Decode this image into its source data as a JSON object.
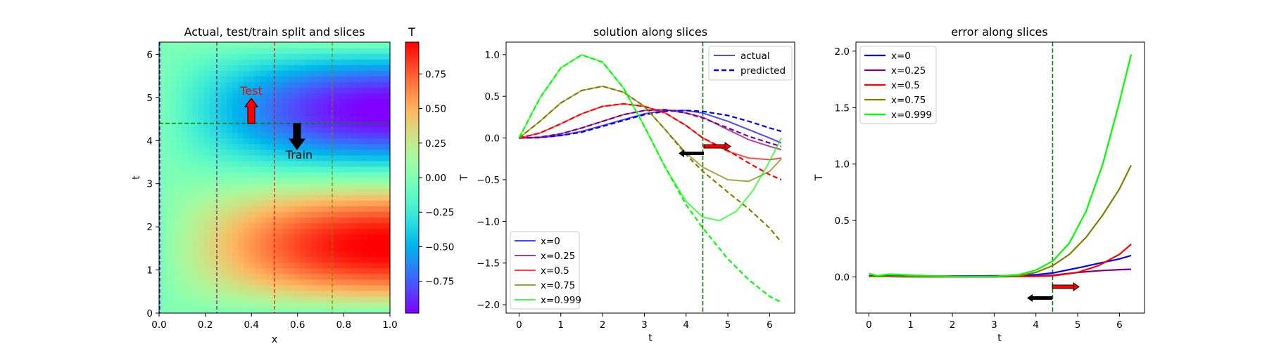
{
  "chart_data": [
    {
      "type": "heatmap",
      "title": "Actual, test/train split and slices",
      "xlabel": "x",
      "ylabel": "t",
      "xlim": [
        0,
        1
      ],
      "ylim": [
        0,
        6.283
      ],
      "xticks": [
        "0.0",
        "0.2",
        "0.4",
        "0.6",
        "0.8",
        "1.0"
      ],
      "yticks": [
        "0",
        "1",
        "2",
        "3",
        "4",
        "5",
        "6"
      ],
      "colorbar": {
        "label": "T",
        "range": [
          -0.98,
          0.98
        ],
        "ticks": [
          "0.75",
          "0.50",
          "0.25",
          "0.00",
          "−0.25",
          "−0.50",
          "−0.75"
        ],
        "colormap": "rainbow"
      },
      "split_t": 4.4,
      "slices_x": [
        0,
        0.25,
        0.5,
        0.75,
        0.999
      ],
      "slice_colors": [
        "#0000ff",
        "#800080",
        "#ff0000",
        "#808000",
        "#00ff00"
      ],
      "annotations": {
        "test_label": "Test",
        "train_label": "Train"
      },
      "colors": {
        "test": "#ff0000",
        "split_line": "#008000"
      }
    },
    {
      "type": "line",
      "title": "solution along slices",
      "xlabel": "t",
      "ylabel": "T",
      "xlim": [
        -0.31,
        6.6
      ],
      "ylim": [
        -2.1,
        1.15
      ],
      "xticks": [
        "0",
        "1",
        "2",
        "3",
        "4",
        "5",
        "6"
      ],
      "yticks": [
        "1.0",
        "0.5",
        "0.0",
        "−0.5",
        "−1.0",
        "−1.5",
        "−2.0"
      ],
      "split_t": 4.4,
      "style_legend": [
        "actual",
        "predicted"
      ],
      "series": [
        {
          "name": "x=0",
          "color": "#0000ff",
          "actual": {
            "t": [
              0,
              0.5,
              1,
              1.5,
              2,
              2.5,
              3,
              3.5,
              4,
              4.4,
              5,
              5.5,
              6,
              6.28
            ],
            "y": [
              0,
              0.005,
              0.03,
              0.08,
              0.15,
              0.22,
              0.29,
              0.33,
              0.33,
              0.3,
              0.2,
              0.1,
              0.0,
              -0.06
            ]
          },
          "predicted": {
            "t": [
              0,
              0.5,
              1,
              1.5,
              2,
              2.5,
              3,
              3.5,
              4,
              4.4,
              5,
              5.5,
              6,
              6.28
            ],
            "y": [
              0,
              0.005,
              0.03,
              0.07,
              0.14,
              0.21,
              0.28,
              0.32,
              0.33,
              0.32,
              0.27,
              0.2,
              0.12,
              0.08
            ]
          }
        },
        {
          "name": "x=0.25",
          "color": "#800080",
          "actual": {
            "t": [
              0,
              0.5,
              1,
              1.5,
              2,
              2.5,
              3,
              3.5,
              4,
              4.4,
              5,
              5.5,
              6,
              6.28
            ],
            "y": [
              0,
              0.01,
              0.05,
              0.12,
              0.2,
              0.28,
              0.33,
              0.34,
              0.3,
              0.25,
              0.1,
              -0.02,
              -0.1,
              -0.14
            ]
          },
          "predicted": {
            "t": [
              0,
              0.5,
              1,
              1.5,
              2,
              2.5,
              3,
              3.5,
              4,
              4.4,
              5,
              5.5,
              6,
              6.28
            ],
            "y": [
              0,
              0.01,
              0.05,
              0.12,
              0.2,
              0.28,
              0.33,
              0.34,
              0.3,
              0.24,
              0.12,
              0.02,
              -0.06,
              -0.1
            ]
          }
        },
        {
          "name": "x=0.5",
          "color": "#ff0000",
          "actual": {
            "t": [
              0,
              0.5,
              1,
              1.5,
              2,
              2.5,
              3,
              3.5,
              4,
              4.4,
              5,
              5.5,
              6,
              6.28
            ],
            "y": [
              0,
              0.06,
              0.17,
              0.29,
              0.38,
              0.41,
              0.38,
              0.3,
              0.15,
              0.0,
              -0.16,
              -0.24,
              -0.26,
              -0.24
            ]
          },
          "predicted": {
            "t": [
              0,
              0.5,
              1,
              1.5,
              2,
              2.5,
              3,
              3.5,
              4,
              4.4,
              5,
              5.5,
              6,
              6.28
            ],
            "y": [
              0,
              0.06,
              0.17,
              0.29,
              0.38,
              0.41,
              0.38,
              0.3,
              0.15,
              0.0,
              -0.15,
              -0.3,
              -0.44,
              -0.5
            ]
          }
        },
        {
          "name": "x=0.75",
          "color": "#808000",
          "actual": {
            "t": [
              0,
              0.5,
              1,
              1.5,
              2,
              2.5,
              3,
              3.5,
              4,
              4.4,
              5,
              5.5,
              6,
              6.28
            ],
            "y": [
              0,
              0.2,
              0.42,
              0.57,
              0.62,
              0.55,
              0.38,
              0.1,
              -0.18,
              -0.35,
              -0.5,
              -0.52,
              -0.4,
              -0.25
            ]
          },
          "predicted": {
            "t": [
              0,
              0.5,
              1,
              1.5,
              2,
              2.5,
              3,
              3.5,
              4,
              4.4,
              5,
              5.5,
              6,
              6.28
            ],
            "y": [
              0,
              0.2,
              0.42,
              0.57,
              0.62,
              0.55,
              0.38,
              0.1,
              -0.2,
              -0.4,
              -0.65,
              -0.85,
              -1.08,
              -1.25
            ]
          }
        },
        {
          "name": "x=0.999",
          "color": "#00ff00",
          "actual": {
            "t": [
              0,
              0.5,
              1,
              1.5,
              2,
              2.5,
              3,
              3.5,
              4,
              4.4,
              4.8,
              5.2,
              5.6,
              6,
              6.28
            ],
            "y": [
              0,
              0.48,
              0.84,
              0.997,
              0.91,
              0.6,
              0.14,
              -0.35,
              -0.76,
              -0.95,
              -0.99,
              -0.88,
              -0.63,
              -0.28,
              0.0
            ]
          },
          "predicted": {
            "t": [
              0,
              0.5,
              1,
              1.5,
              2,
              2.5,
              3,
              3.5,
              4,
              4.4,
              5,
              5.5,
              6,
              6.28
            ],
            "y": [
              0,
              0.48,
              0.84,
              0.997,
              0.91,
              0.6,
              0.14,
              -0.35,
              -0.8,
              -1.08,
              -1.45,
              -1.7,
              -1.9,
              -1.97
            ]
          }
        }
      ]
    },
    {
      "type": "line",
      "title": "error along slices",
      "xlabel": "t",
      "ylabel": "T",
      "xlim": [
        -0.31,
        6.6
      ],
      "ylim": [
        -0.32,
        2.08
      ],
      "xticks": [
        "0",
        "1",
        "2",
        "3",
        "4",
        "5",
        "6"
      ],
      "yticks": [
        "2.0",
        "1.5",
        "1.0",
        "0.5",
        "0.0"
      ],
      "split_t": 4.4,
      "series": [
        {
          "name": "x=0",
          "color": "#0000ff",
          "t": [
            0,
            1,
            2,
            3,
            3.5,
            4,
            4.4,
            5,
            5.5,
            6,
            6.28
          ],
          "y": [
            0.01,
            0.005,
            0.008,
            0.01,
            0.01,
            0.02,
            0.035,
            0.08,
            0.12,
            0.16,
            0.19
          ]
        },
        {
          "name": "x=0.25",
          "color": "#800080",
          "t": [
            0,
            1,
            2,
            3,
            4,
            4.4,
            5,
            5.5,
            6,
            6.28
          ],
          "y": [
            0.005,
            0.002,
            0.002,
            0.003,
            0.008,
            0.015,
            0.04,
            0.055,
            0.065,
            0.068
          ]
        },
        {
          "name": "x=0.5",
          "color": "#ff0000",
          "t": [
            0,
            1,
            2,
            3,
            4,
            4.4,
            5,
            5.5,
            6,
            6.28
          ],
          "y": [
            0.005,
            0.002,
            0.002,
            0.003,
            0.005,
            0.01,
            0.04,
            0.1,
            0.2,
            0.29
          ]
        },
        {
          "name": "x=0.75",
          "color": "#808000",
          "t": [
            0,
            1,
            2,
            3,
            3.6,
            4,
            4.4,
            4.8,
            5.2,
            5.6,
            6,
            6.28
          ],
          "y": [
            0.005,
            0.003,
            0.003,
            0.004,
            0.01,
            0.04,
            0.1,
            0.2,
            0.35,
            0.55,
            0.78,
            0.99
          ]
        },
        {
          "name": "x=0.999",
          "color": "#00ff00",
          "t": [
            0,
            0.2,
            0.5,
            1,
            2,
            3,
            3.6,
            4,
            4.4,
            4.8,
            5.2,
            5.6,
            6,
            6.28
          ],
          "y": [
            0.03,
            0.01,
            0.025,
            0.015,
            0.005,
            0.005,
            0.02,
            0.06,
            0.14,
            0.3,
            0.58,
            1.0,
            1.55,
            1.97
          ]
        }
      ]
    }
  ]
}
